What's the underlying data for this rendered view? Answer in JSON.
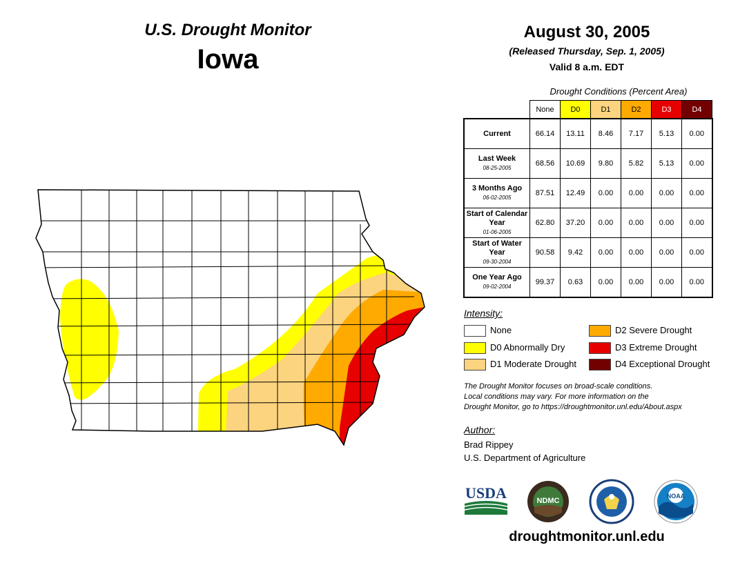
{
  "header": {
    "title": "U.S. Drought Monitor",
    "state": "Iowa",
    "date": "August 30, 2005",
    "released": "(Released Thursday, Sep. 1, 2005)",
    "valid": "Valid 8 a.m. EDT"
  },
  "table": {
    "title": "Drought Conditions (Percent Area)",
    "columns": [
      "None",
      "D0",
      "D1",
      "D2",
      "D3",
      "D4"
    ],
    "column_colors": [
      "#ffffff",
      "#ffff00",
      "#fcd37f",
      "#ffaa00",
      "#e60000",
      "#730000"
    ],
    "rows": [
      {
        "label": "Current",
        "sub": "",
        "values": [
          "66.14",
          "13.11",
          "8.46",
          "7.17",
          "5.13",
          "0.00"
        ]
      },
      {
        "label": "Last Week",
        "sub": "08-25-2005",
        "values": [
          "68.56",
          "10.69",
          "9.80",
          "5.82",
          "5.13",
          "0.00"
        ]
      },
      {
        "label": "3 Months Ago",
        "sub": "06-02-2005",
        "values": [
          "87.51",
          "12.49",
          "0.00",
          "0.00",
          "0.00",
          "0.00"
        ]
      },
      {
        "label": "Start of Calendar Year",
        "sub": "01-06-2005",
        "values": [
          "62.80",
          "37.20",
          "0.00",
          "0.00",
          "0.00",
          "0.00"
        ]
      },
      {
        "label": "Start of Water Year",
        "sub": "09-30-2004",
        "values": [
          "90.58",
          "9.42",
          "0.00",
          "0.00",
          "0.00",
          "0.00"
        ]
      },
      {
        "label": "One Year Ago",
        "sub": "09-02-2004",
        "values": [
          "99.37",
          "0.63",
          "0.00",
          "0.00",
          "0.00",
          "0.00"
        ]
      }
    ]
  },
  "legend": {
    "title": "Intensity:",
    "items": [
      {
        "label": "None",
        "color": "#ffffff"
      },
      {
        "label": "D0 Abnormally Dry",
        "color": "#ffff00"
      },
      {
        "label": "D1 Moderate Drought",
        "color": "#fcd37f"
      },
      {
        "label": "D2 Severe Drought",
        "color": "#ffaa00"
      },
      {
        "label": "D3 Extreme Drought",
        "color": "#e60000"
      },
      {
        "label": "D4 Exceptional Drought",
        "color": "#730000"
      }
    ]
  },
  "note": {
    "line1": "The Drought Monitor focuses on broad-scale conditions.",
    "line2": "Local conditions may vary. For more information on the",
    "line3": "Drought Monitor, go to https://droughtmonitor.unl.edu/About.aspx"
  },
  "author": {
    "label": "Author:",
    "name": "Brad Rippey",
    "org": "U.S. Department of Agriculture"
  },
  "logos": {
    "usda": "USDA",
    "ndmc": "NDMC",
    "noaa": "NOAA"
  },
  "website": "droughtmonitor.unl.edu"
}
